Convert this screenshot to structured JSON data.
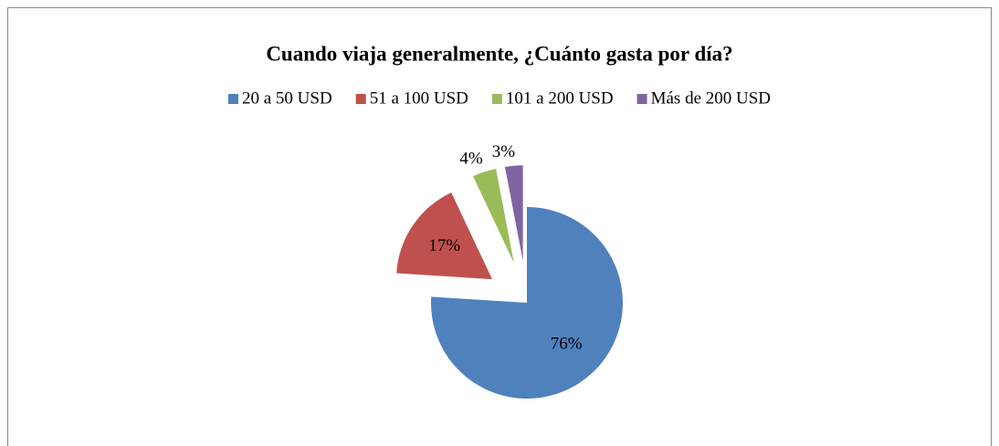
{
  "chart_data": {
    "type": "pie",
    "title": "Cuando viaja generalmente, ¿Cuánto gasta por día?",
    "categories": [
      "20 a 50 USD",
      "51 a 100 USD",
      "101 a 200 USD",
      "Más de 200 USD"
    ],
    "values": [
      76,
      17,
      4,
      3
    ],
    "value_labels": [
      "76%",
      "17%",
      "4%",
      "3%"
    ],
    "colors": [
      "#4f81bd",
      "#c0504d",
      "#9bbb59",
      "#8064a2"
    ],
    "legend": "top"
  }
}
